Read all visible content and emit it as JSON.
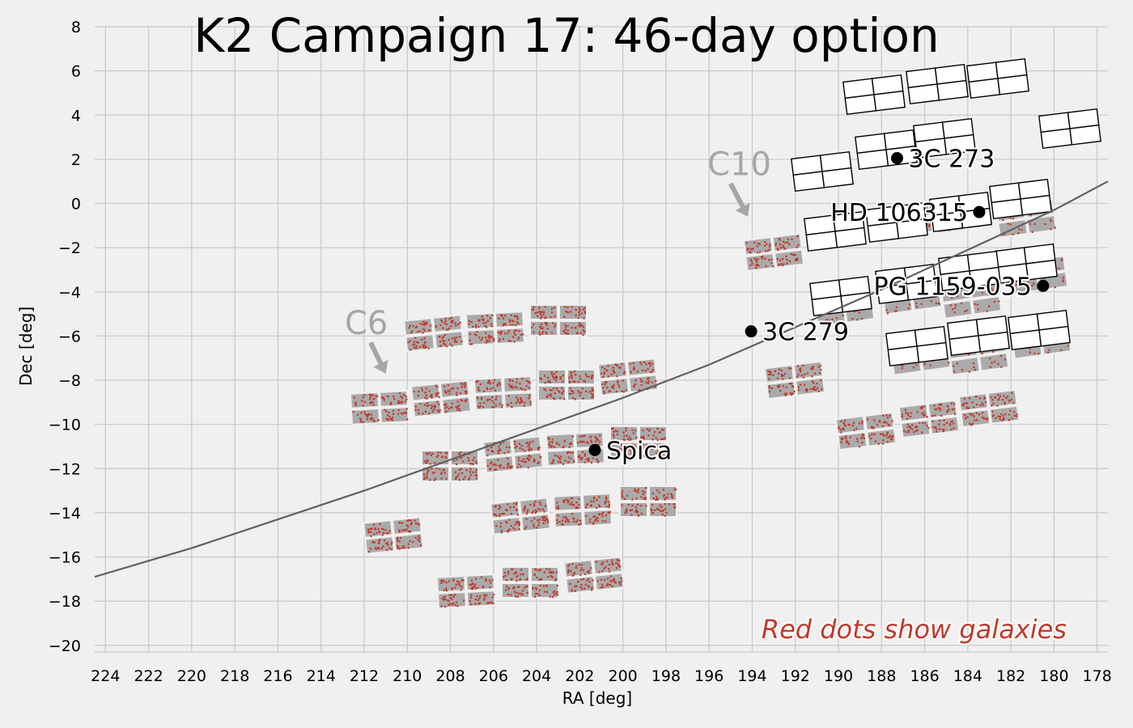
{
  "chart_data": {
    "type": "scatter",
    "title": "K2 Campaign 17: 46-day option",
    "xlabel": "RA [deg]",
    "ylabel": "Dec [deg]",
    "xlim": [
      224.5,
      177.5
    ],
    "ylim": [
      -20.3,
      8
    ],
    "xticks": [
      224,
      222,
      220,
      218,
      216,
      214,
      212,
      210,
      208,
      206,
      204,
      202,
      200,
      198,
      196,
      194,
      192,
      190,
      188,
      186,
      184,
      182,
      180,
      178
    ],
    "yticks": [
      8,
      6,
      4,
      2,
      0,
      -2,
      -4,
      -6,
      -8,
      -10,
      -12,
      -14,
      -16,
      -18,
      -20
    ],
    "grid": true,
    "ecliptic": [
      [
        224.5,
        -16.9
      ],
      [
        220,
        -15.6
      ],
      [
        216,
        -14.3
      ],
      [
        212,
        -13.0
      ],
      [
        208,
        -11.6
      ],
      [
        204,
        -10.2
      ],
      [
        200,
        -8.8
      ],
      [
        196,
        -7.3
      ],
      [
        192,
        -5.6
      ],
      [
        188,
        -3.9
      ],
      [
        184,
        -2.1
      ],
      [
        180,
        -0.3
      ],
      [
        177.5,
        1.0
      ]
    ],
    "targets": [
      {
        "name": "3C 273",
        "ra": 187.28,
        "dec": 2.05
      },
      {
        "name": "HD 106315",
        "ra": 183.47,
        "dec": -0.39
      },
      {
        "name": "PG 1159-035",
        "ra": 180.51,
        "dec": -3.73
      },
      {
        "name": "3C 279",
        "ra": 194.05,
        "dec": -5.79
      },
      {
        "name": "Spica",
        "ra": 201.3,
        "dec": -11.16
      }
    ],
    "previous_campaigns": [
      {
        "name": "C10",
        "label_ra": 194.6,
        "label_dec": 1.8,
        "arrow_from": [
          195.0,
          0.9
        ],
        "arrow_to": [
          194.2,
          -0.6
        ]
      },
      {
        "name": "C6",
        "label_ra": 211.9,
        "label_dec": -5.4,
        "arrow_from": [
          211.7,
          -6.3
        ],
        "arrow_to": [
          211.0,
          -7.7
        ]
      }
    ],
    "annotation": {
      "text": "Red dots show galaxies",
      "color": "#c0392b"
    },
    "colors": {
      "background": "#f0f0f0",
      "grid": "#cbcbcb",
      "ecliptic": "#606060",
      "footprint_gray": "#aaaaaa",
      "galaxy_red": "#c0392b",
      "target_dot": "#000000"
    }
  }
}
